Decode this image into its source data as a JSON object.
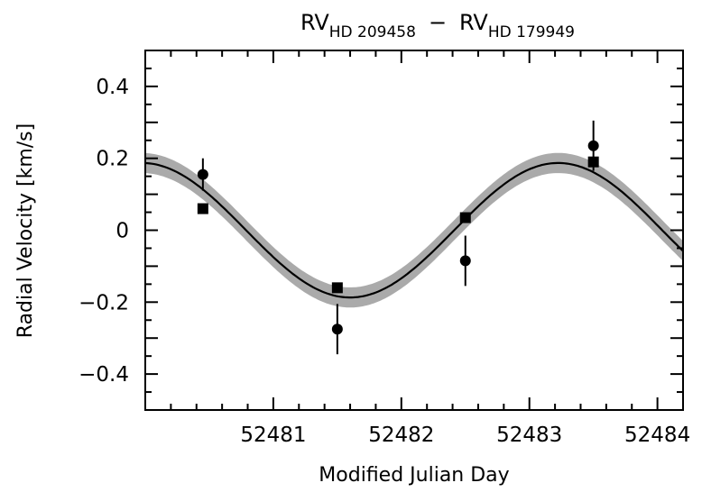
{
  "chart_data": {
    "type": "scatter",
    "title": {
      "main1": "RV",
      "sub1": "HD 209458",
      "dash": "−",
      "main2": "RV",
      "sub2": "HD 179949"
    },
    "xlabel": "Modified Julian Day",
    "ylabel": "Radial Velocity [km/s]",
    "xlim": [
      52480.0,
      52484.2
    ],
    "ylim": [
      -0.5,
      0.5
    ],
    "xticks": [
      52481,
      52482,
      52483,
      52484
    ],
    "xtick_labels": [
      "52481",
      "52482",
      "52483",
      "52484"
    ],
    "yticks": [
      -0.4,
      -0.2,
      0,
      0.2,
      0.4
    ],
    "ytick_labels": [
      "−0.4",
      "−0.2",
      "0",
      "0.2",
      "0.4"
    ],
    "grid": false,
    "series": [
      {
        "marker": "circle",
        "points": [
          {
            "x": 52480.45,
            "y": 0.155,
            "err": 0.045
          },
          {
            "x": 52481.5,
            "y": -0.275,
            "err": 0.07
          },
          {
            "x": 52482.5,
            "y": -0.085,
            "err": 0.07
          },
          {
            "x": 52483.5,
            "y": 0.235,
            "err": 0.07
          }
        ]
      },
      {
        "marker": "square",
        "points": [
          {
            "x": 52480.45,
            "y": 0.06
          },
          {
            "x": 52481.5,
            "y": -0.16
          },
          {
            "x": 52482.5,
            "y": 0.035
          },
          {
            "x": 52483.5,
            "y": 0.19
          }
        ]
      }
    ],
    "model": {
      "type": "sinusoid",
      "amplitude": 0.187,
      "center_x": 52481.6,
      "period": 3.25,
      "band_halfwidth": 0.028
    },
    "colors": {
      "band": "#aaaaaa",
      "curve": "#000000",
      "markers": "#000000"
    }
  }
}
